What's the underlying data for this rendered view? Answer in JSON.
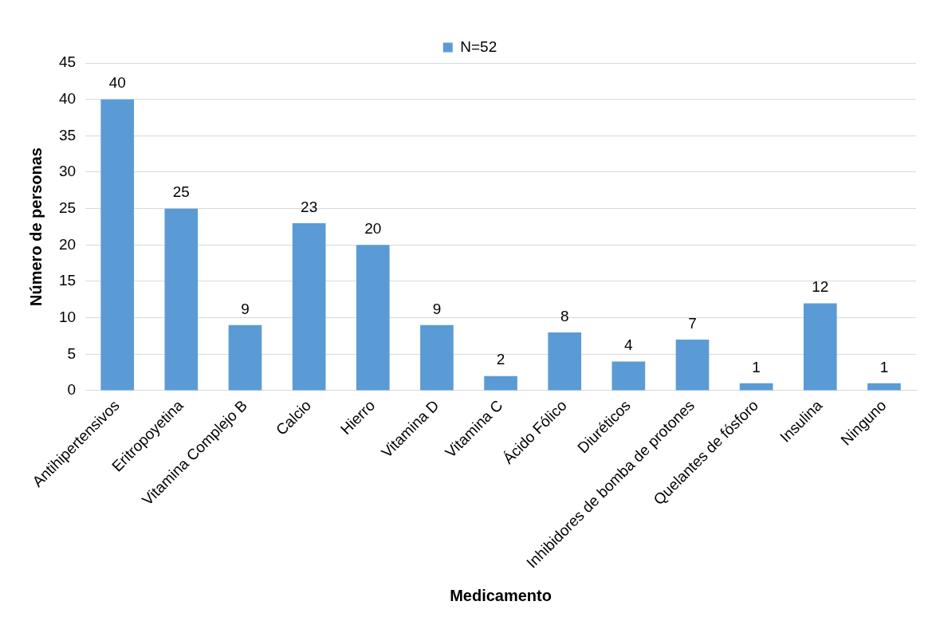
{
  "chart_data": {
    "type": "bar",
    "xlabel": "Medicamento",
    "ylabel": "Número de personas",
    "categories": [
      "Antihipertensivos",
      "Eritropoyetina",
      "Vitamina Complejo B",
      "Calcio",
      "Hierro",
      "Vitamina D",
      "Vitamina C",
      "Ácido Fólico",
      "Diuréticos",
      "Inhibidores de bomba de protones",
      "Quelantes de fósforo",
      "Insulina",
      "Ninguno"
    ],
    "series": [
      {
        "name": "N=52",
        "color": "#5b9bd5",
        "values": [
          40,
          25,
          9,
          23,
          20,
          9,
          2,
          8,
          4,
          7,
          1,
          12,
          1
        ]
      }
    ],
    "ylim": [
      0,
      45
    ],
    "yticks": [
      0,
      5,
      10,
      15,
      20,
      25,
      30,
      35,
      40,
      45
    ],
    "grid": "y",
    "legend": "top",
    "data_labels": true
  }
}
